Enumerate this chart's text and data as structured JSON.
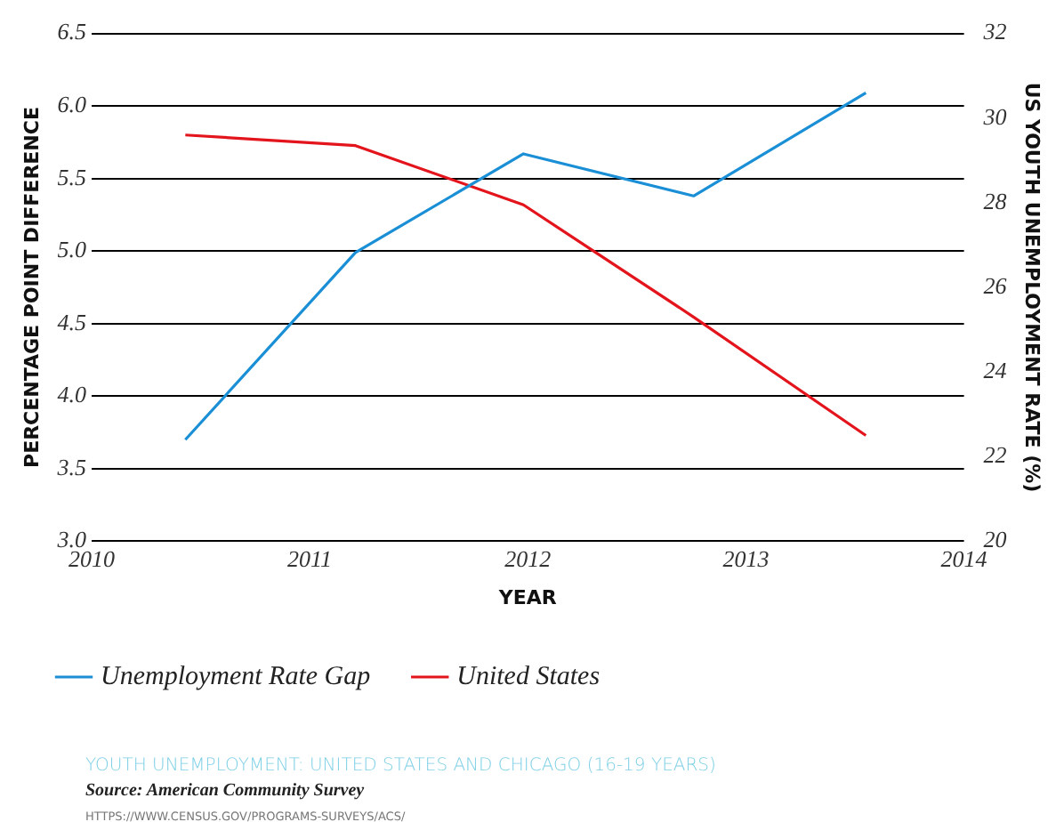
{
  "chart_data": {
    "type": "line",
    "xlabel": "YEAR",
    "ylabel": "PERCENTAGE POINT DIFFERENCE",
    "y2label": "US YOUTH UNEMPLOYMENT RATE (%)",
    "x": [
      2010.43,
      2011.21,
      2011.98,
      2012.76,
      2013.55
    ],
    "series": [
      {
        "name": "Unemployment Rate Gap",
        "color": "#1a8fd6",
        "values": [
          3.7,
          4.99,
          5.67,
          5.38,
          6.09
        ]
      },
      {
        "name": "United States",
        "color": "#e3141b",
        "axis": "y2",
        "values": [
          29.6,
          29.35,
          27.95,
          25.3,
          22.5
        ]
      }
    ],
    "xlim": [
      2010,
      2014
    ],
    "xticks": [
      2010,
      2011,
      2012,
      2013,
      2014
    ],
    "ylim": [
      3,
      6.5
    ],
    "yticks": [
      {
        "value": 3,
        "label": "3.0"
      },
      3.5,
      {
        "value": 4,
        "label": "4.0"
      },
      4.5,
      {
        "value": 5,
        "label": "5.0"
      },
      5.5,
      {
        "value": 6,
        "label": "6.0"
      },
      6.5
    ],
    "y2lim": [
      20,
      32
    ],
    "y2ticks": [
      20,
      22,
      24,
      26,
      28,
      30,
      32
    ],
    "grid": "y",
    "legend": "bottom",
    "marker": "none",
    "line_style": "solid",
    "annotations": [
      "YOUTH UNEMPLOYMENT: UNITED STATES AND CHICAGO (16-19 YEARS)",
      "Source: American Community Survey",
      "HTTPS://WWW.CENSUS.GOV/PROGRAMS-SURVEYS/ACS/"
    ]
  }
}
